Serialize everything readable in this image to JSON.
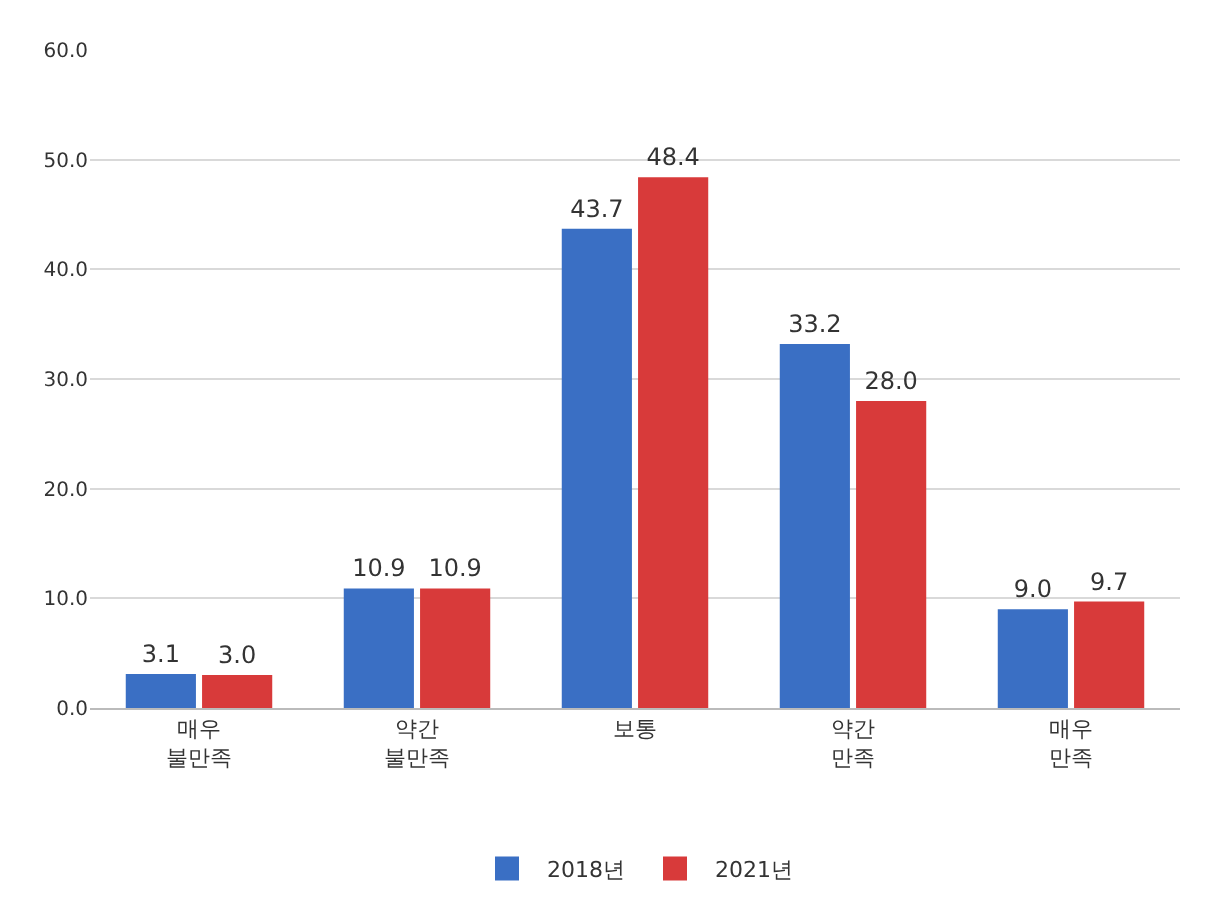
{
  "chart_data": {
    "type": "bar",
    "categories": [
      "매우\n불만족",
      "약간\n불만족",
      "보통",
      "약간\n만족",
      "매우\n만족"
    ],
    "series": [
      {
        "name": "2018년",
        "color": "#3a6fc4",
        "values": [
          3.1,
          10.9,
          43.7,
          33.2,
          9.0
        ],
        "value_labels": [
          "3.1",
          "10.9",
          "43.7",
          "33.2",
          "9.0"
        ]
      },
      {
        "name": "2021년",
        "color": "#d83a3a",
        "values": [
          3.0,
          10.9,
          48.4,
          28.0,
          9.7
        ],
        "value_labels": [
          "3.0",
          "10.9",
          "48.4",
          "28.0",
          "9.7"
        ]
      }
    ],
    "ylim": [
      0,
      60
    ],
    "yticks": [
      {
        "value": 0,
        "label": "0.0"
      },
      {
        "value": 10,
        "label": "10.0"
      },
      {
        "value": 20,
        "label": "20.0"
      },
      {
        "value": 30,
        "label": "30.0"
      },
      {
        "value": 40,
        "label": "40.0"
      },
      {
        "value": 50,
        "label": "50.0"
      },
      {
        "value": 60,
        "label": "60.0"
      }
    ],
    "grid": "y",
    "legend": "bottom"
  }
}
